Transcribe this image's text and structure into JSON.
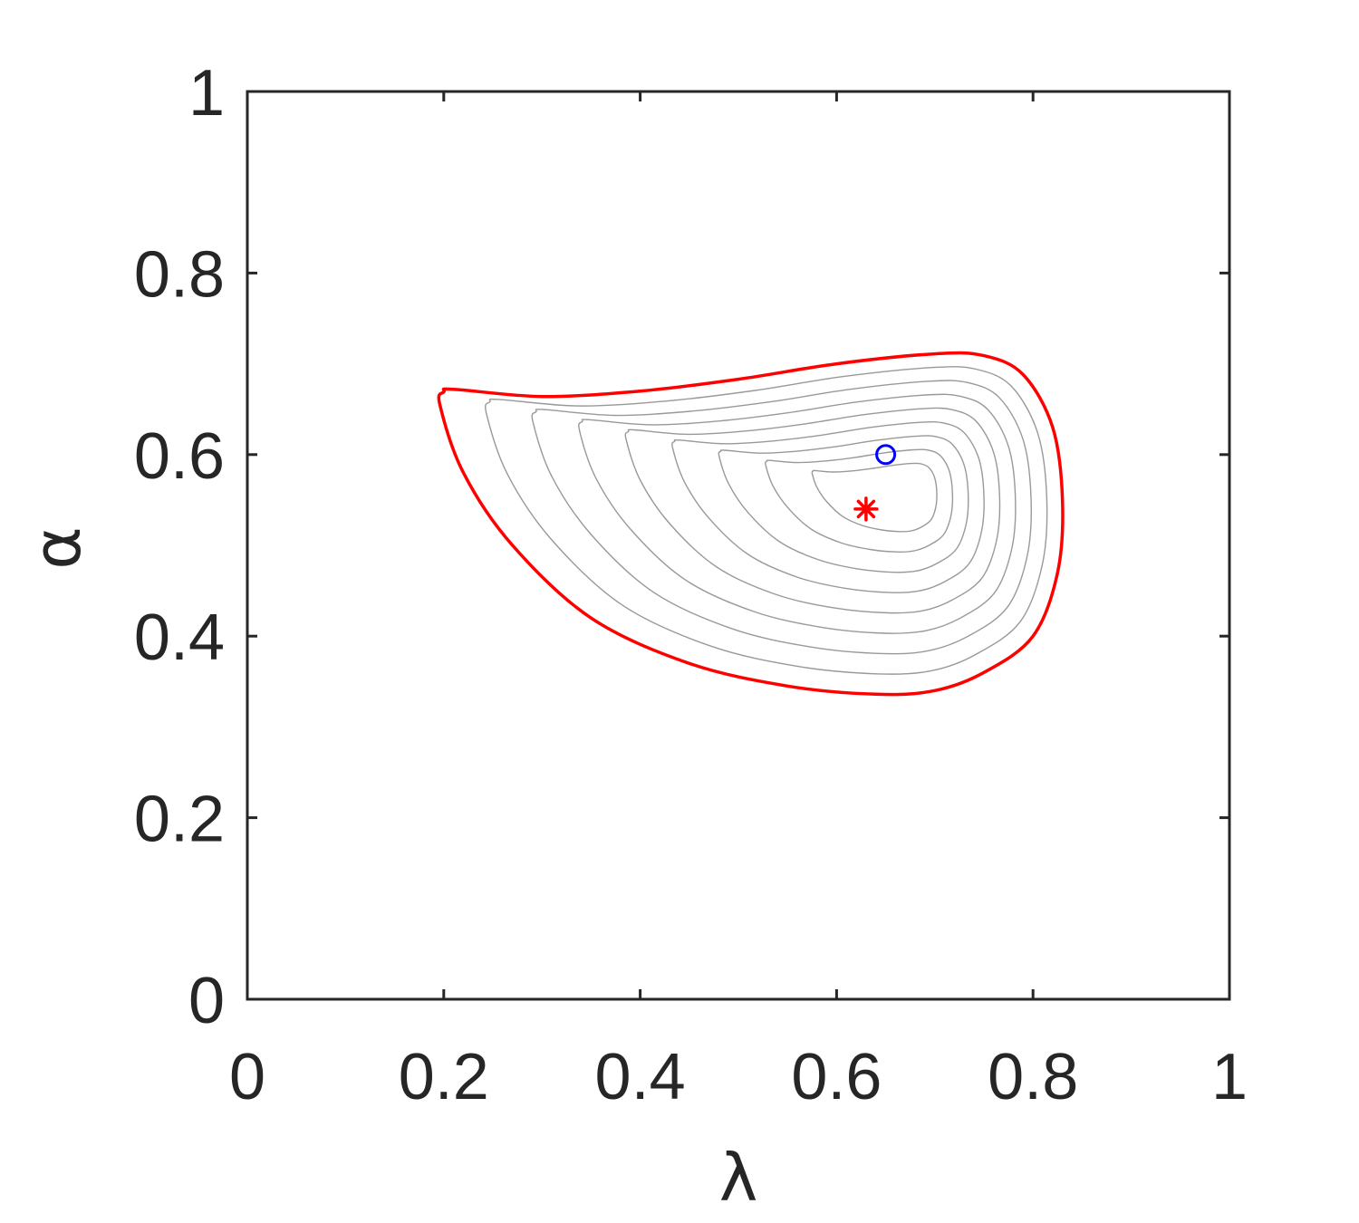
{
  "chart_data": {
    "type": "line",
    "title": "",
    "xlabel": "λ",
    "ylabel": "α",
    "xlim": [
      0,
      1
    ],
    "ylim": [
      0,
      1
    ],
    "xticks": [
      0,
      0.2,
      0.4,
      0.6,
      0.8,
      1
    ],
    "yticks": [
      0,
      0.2,
      0.4,
      0.6,
      0.8,
      1
    ],
    "x_tick_labels": [
      "0",
      "0.2",
      "0.4",
      "0.6",
      "0.8",
      "1"
    ],
    "y_tick_labels": [
      "0",
      "0.2",
      "0.4",
      "0.6",
      "0.8",
      "1"
    ],
    "grid": false,
    "colors": {
      "outer_contour": "#ff0000",
      "inner_contours": "#999999",
      "minimum_marker": "#ff0000",
      "point_marker": "#0000ff",
      "axes": "#262626"
    },
    "outer_contour": [
      [
        0.196,
        0.655
      ],
      [
        0.2,
        0.669
      ],
      [
        0.21,
        0.672
      ],
      [
        0.3,
        0.664
      ],
      [
        0.4,
        0.67
      ],
      [
        0.5,
        0.683
      ],
      [
        0.6,
        0.7
      ],
      [
        0.7,
        0.711
      ],
      [
        0.75,
        0.709
      ],
      [
        0.79,
        0.688
      ],
      [
        0.82,
        0.63
      ],
      [
        0.83,
        0.55
      ],
      [
        0.825,
        0.47
      ],
      [
        0.8,
        0.4
      ],
      [
        0.75,
        0.36
      ],
      [
        0.7,
        0.34
      ],
      [
        0.64,
        0.336
      ],
      [
        0.55,
        0.345
      ],
      [
        0.45,
        0.37
      ],
      [
        0.35,
        0.42
      ],
      [
        0.27,
        0.5
      ],
      [
        0.22,
        0.58
      ],
      [
        0.196,
        0.655
      ]
    ],
    "inner_contours": [
      {
        "center": [
          0.67,
          0.56
        ],
        "rx": [
          0.15,
          0.125
        ],
        "ry": [
          0.17,
          0.1
        ],
        "shift": 0.08
      },
      {
        "center": [
          0.67,
          0.56
        ],
        "rx": [
          0.13,
          0.115
        ],
        "ry": [
          0.153,
          0.095
        ],
        "shift": 0.07
      },
      {
        "center": [
          0.67,
          0.56
        ],
        "rx": [
          0.11,
          0.105
        ],
        "ry": [
          0.136,
          0.09
        ],
        "shift": 0.06
      },
      {
        "center": [
          0.67,
          0.56
        ],
        "rx": [
          0.09,
          0.095
        ],
        "ry": [
          0.119,
          0.085
        ],
        "shift": 0.05
      },
      {
        "center": [
          0.67,
          0.56
        ],
        "rx": [
          0.07,
          0.085
        ],
        "ry": [
          0.102,
          0.08
        ],
        "shift": 0.04
      },
      {
        "center": [
          0.67,
          0.56
        ],
        "rx": [
          0.05,
          0.075
        ],
        "ry": [
          0.085,
          0.075
        ],
        "shift": 0.03
      },
      {
        "center": [
          0.67,
          0.56
        ],
        "rx": [
          0.03,
          0.065
        ],
        "ry": [
          0.068,
          0.07
        ],
        "shift": 0.02
      },
      {
        "center": [
          0.67,
          0.56
        ],
        "rx": [
          0.01,
          0.055
        ],
        "ry": [
          0.051,
          0.065
        ],
        "shift": 0.01
      }
    ],
    "minimum_marker": {
      "x": 0.63,
      "y": 0.54,
      "symbol": "asterisk"
    },
    "point_marker": {
      "x": 0.65,
      "y": 0.6,
      "symbol": "circle"
    }
  }
}
